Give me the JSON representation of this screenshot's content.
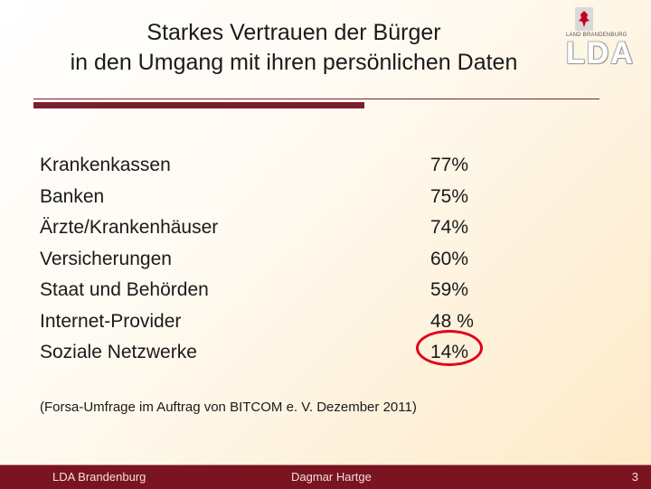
{
  "title": {
    "line1": "Starkes Vertrauen der Bürger",
    "line2": "in den Umgang mit ihren persönlichen Daten"
  },
  "logo": {
    "small_text": "LAND BRANDENBURG",
    "text": "LDA"
  },
  "items": [
    {
      "label": "Krankenkassen",
      "value": "77%"
    },
    {
      "label": "Banken",
      "value": "75%"
    },
    {
      "label": "Ärzte/Krankenhäuser",
      "value": "74%"
    },
    {
      "label": "Versicherungen",
      "value": "60%"
    },
    {
      "label": "Staat und Behörden",
      "value": "59%"
    },
    {
      "label": "Internet-Provider",
      "value": "48 %"
    },
    {
      "label": "Soziale Netzwerke",
      "value": "14%"
    }
  ],
  "source": "(Forsa-Umfrage im Auftrag von BITCOM e. V. Dezember 2011)",
  "footer": {
    "left": "LDA Brandenburg",
    "center": "Dagmar Hartge",
    "page_number": "3"
  },
  "colors": {
    "accent": "#7a1f2b",
    "highlight": "#e0001a"
  }
}
